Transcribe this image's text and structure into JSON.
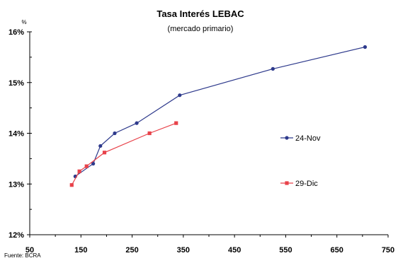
{
  "chart_data": {
    "type": "scatter",
    "title": "Tasa Interés LEBAC",
    "subtitle": "(mercado primario)",
    "y_unit": "%",
    "source": "Fuente: BCRA",
    "xlim": [
      50,
      750
    ],
    "ylim": [
      12,
      16
    ],
    "x_ticks": [
      50,
      150,
      250,
      350,
      450,
      550,
      650,
      750
    ],
    "x_tick_labels": [
      "50",
      "150",
      "250",
      "350",
      "450",
      "550",
      "650",
      "750"
    ],
    "y_ticks": [
      12,
      13,
      14,
      15,
      16
    ],
    "y_tick_labels": [
      "12%",
      "13%",
      "14%",
      "15%",
      "16%"
    ],
    "grid": false,
    "legend": "right",
    "series": [
      {
        "name": "24-Nov",
        "color": "#2e3a8c",
        "marker": "circle",
        "x": [
          139,
          174,
          188,
          216,
          259,
          343,
          525,
          705
        ],
        "y": [
          13.15,
          13.4,
          13.75,
          14.0,
          14.2,
          14.75,
          15.27,
          15.7
        ]
      },
      {
        "name": "29-Dic",
        "color": "#e8424a",
        "marker": "square",
        "x": [
          132,
          147,
          161,
          196,
          284,
          336
        ],
        "y": [
          12.98,
          13.25,
          13.35,
          13.62,
          14.0,
          14.2
        ]
      }
    ]
  }
}
